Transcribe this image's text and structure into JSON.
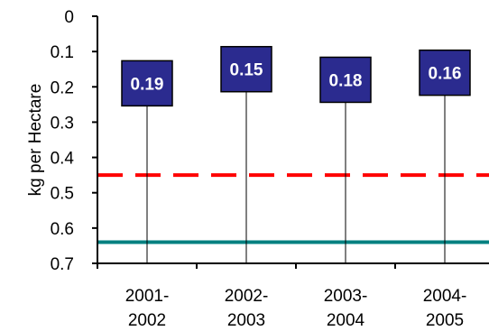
{
  "chart_data": {
    "type": "line",
    "categories": [
      [
        "2001-",
        "2002"
      ],
      [
        "2002-",
        "2003"
      ],
      [
        "2003-",
        "2004"
      ],
      [
        "2004-",
        "2005"
      ]
    ],
    "values": [
      0.19,
      0.15,
      0.18,
      0.16
    ],
    "value_labels": [
      "0.19",
      "0.15",
      "0.18",
      "0.16"
    ],
    "ylabel": "kg per Hectare",
    "ylim": [
      0,
      0.7
    ],
    "y_inverted": true,
    "yticks": [
      "0",
      "0.1",
      "0.2",
      "0.3",
      "0.4",
      "0.5",
      "0.6",
      "0.7"
    ],
    "reference_lines": [
      {
        "value": 0.45,
        "style": "dashed",
        "color": "#ff0000"
      },
      {
        "value": 0.64,
        "style": "solid",
        "color": "#008080"
      }
    ],
    "marker_color": "#2b2b8f",
    "grid": false
  }
}
